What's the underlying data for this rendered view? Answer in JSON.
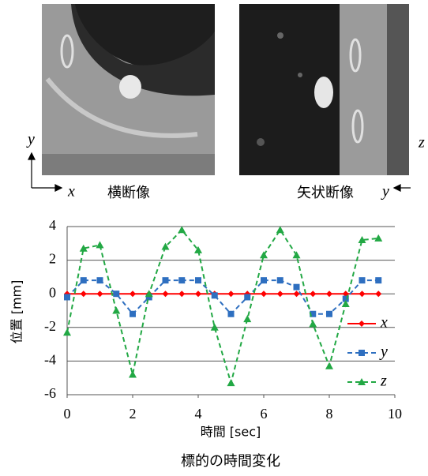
{
  "chart_data": {
    "type": "line",
    "caption": "標的の時間変化",
    "x_label": "時間 [sec]",
    "y_label": "位置 [mm]",
    "x": [
      0,
      0.5,
      1,
      1.5,
      2,
      2.5,
      3,
      3.5,
      4,
      4.5,
      5,
      5.5,
      6,
      6.5,
      7,
      7.5,
      8,
      8.5,
      9,
      9.5
    ],
    "series": [
      {
        "name": "x",
        "color": "#ff0000",
        "marker": "diamond",
        "dashed": false,
        "values": [
          0,
          0,
          0,
          0,
          0,
          0,
          0,
          0,
          0,
          0,
          0,
          0,
          0,
          0,
          0,
          0,
          0,
          0,
          0,
          0
        ]
      },
      {
        "name": "y",
        "color": "#2e6fc0",
        "marker": "square",
        "dashed": true,
        "values": [
          -0.2,
          0.8,
          0.8,
          0,
          -1.2,
          -0.2,
          0.8,
          0.8,
          0.8,
          -0.1,
          -1.2,
          -0.2,
          0.8,
          0.8,
          0.4,
          -1.2,
          -1.2,
          -0.3,
          0.8,
          0.8
        ]
      },
      {
        "name": "z",
        "color": "#22a844",
        "marker": "triangle",
        "dashed": true,
        "values": [
          -2.3,
          2.7,
          2.9,
          -1,
          -4.8,
          0,
          2.8,
          3.8,
          2.6,
          -2,
          -5.3,
          -1.5,
          2.3,
          3.8,
          2.3,
          -1.8,
          -4.3,
          -0.6,
          3.2,
          3.3
        ]
      }
    ],
    "xlim": [
      0,
      10
    ],
    "xticks": [
      0,
      2,
      4,
      6,
      8,
      10
    ],
    "ylim": [
      -6,
      4
    ],
    "yticks": [
      -6,
      -4,
      -2,
      0,
      2,
      4
    ],
    "grid": true,
    "legend": "lower right"
  },
  "images": [
    {
      "caption": "横断像",
      "axis_labels": [
        "y",
        "x"
      ]
    },
    {
      "caption": "矢状断像",
      "axis_labels": [
        "z",
        "y"
      ]
    }
  ]
}
